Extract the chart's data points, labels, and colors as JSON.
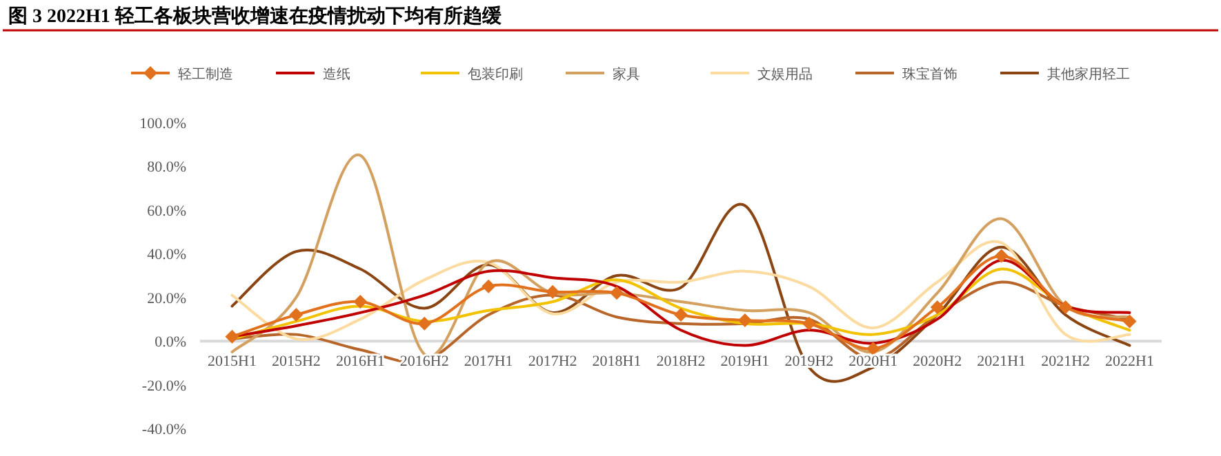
{
  "chart_data": {
    "type": "line",
    "title": "图 3 2022H1 轻工各板块营收增速在疫情扰动下均有所趋缓",
    "categories": [
      "2015H1",
      "2015H2",
      "2016H1",
      "2016H2",
      "2017H1",
      "2017H2",
      "2018H1",
      "2018H2",
      "2019H1",
      "2019H2",
      "2020H1",
      "2020H2",
      "2021H1",
      "2021H2",
      "2022H1"
    ],
    "ylim": [
      -40,
      100
    ],
    "yticks": [
      {
        "value": -40,
        "label": "-40.0%"
      },
      {
        "value": -20,
        "label": "-20.0%"
      },
      {
        "value": 0,
        "label": "0.0%"
      },
      {
        "value": 20,
        "label": "20.0%"
      },
      {
        "value": 40,
        "label": "40.0%"
      },
      {
        "value": 60,
        "label": "60.0%"
      },
      {
        "value": 80,
        "label": "80.0%"
      },
      {
        "value": 100,
        "label": "100.0%"
      }
    ],
    "grid": false,
    "legend": "top",
    "series": [
      {
        "name": "轻工制造",
        "color": "#e2711d",
        "marker": "diamond",
        "values": [
          2,
          12,
          18,
          8,
          25,
          22.5,
          22,
          12,
          9.5,
          8,
          -3.5,
          15.5,
          39,
          15.5,
          9
        ]
      },
      {
        "name": "造纸",
        "color": "#c00000",
        "marker": "none",
        "values": [
          2,
          7,
          13,
          21,
          32,
          29,
          25,
          5,
          -2,
          5,
          -1,
          10,
          37,
          16,
          13
        ]
      },
      {
        "name": "包装印刷",
        "color": "#f2c200",
        "marker": "none",
        "values": [
          1,
          9,
          16,
          9,
          14,
          18,
          28,
          15,
          8,
          8,
          3,
          12,
          33,
          16,
          5
        ]
      },
      {
        "name": "家具",
        "color": "#d4a060",
        "marker": "none",
        "values": [
          -5,
          20,
          85,
          -6,
          36,
          22,
          22,
          18,
          14,
          13,
          -5,
          22,
          56,
          16,
          11
        ]
      },
      {
        "name": "文娱用品",
        "color": "#fbdba0",
        "marker": "none",
        "values": [
          21,
          1,
          10,
          28,
          36,
          12.5,
          27,
          27,
          32,
          25,
          6,
          27,
          45,
          3,
          3
        ]
      },
      {
        "name": "珠宝首饰",
        "color": "#b8652a",
        "marker": "none",
        "values": [
          1,
          3,
          -4,
          -9,
          12,
          21,
          11,
          8,
          8,
          10,
          -8,
          12,
          27,
          16,
          10
        ]
      },
      {
        "name": "其他家用轻工",
        "color": "#8b4513",
        "marker": "none",
        "values": [
          16,
          41,
          33,
          15,
          35,
          13,
          30,
          24.5,
          62,
          -12,
          -12,
          12,
          43,
          12,
          -2
        ]
      }
    ]
  }
}
